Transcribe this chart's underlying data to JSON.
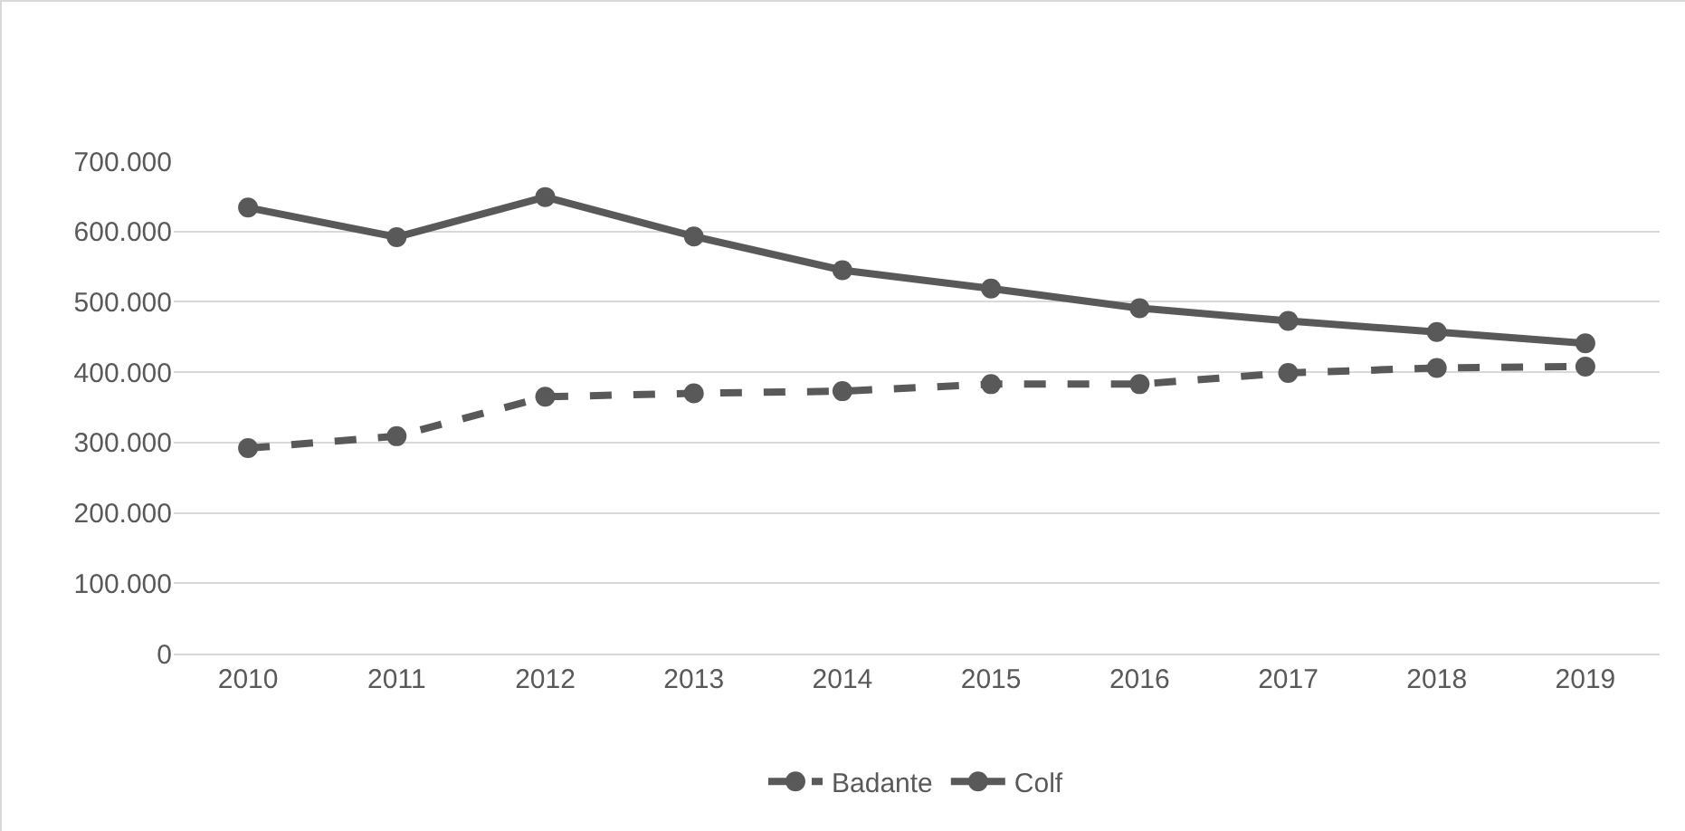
{
  "chart_data": {
    "type": "line",
    "categories": [
      "2010",
      "2011",
      "2012",
      "2013",
      "2014",
      "2015",
      "2016",
      "2017",
      "2018",
      "2019"
    ],
    "series": [
      {
        "name": "Badante",
        "color": "#595959",
        "line_style": "dashed",
        "values": [
          292000,
          309000,
          365000,
          370000,
          373000,
          383000,
          383000,
          399000,
          406000,
          408000
        ]
      },
      {
        "name": "Colf",
        "color": "#595959",
        "line_style": "solid",
        "values": [
          634000,
          592000,
          649000,
          593000,
          545000,
          519000,
          491000,
          473000,
          457000,
          441000
        ]
      }
    ],
    "ylim": [
      0,
      700000
    ],
    "yticks": [
      0,
      {
        "value": 100000,
        "label": "100.000"
      },
      {
        "value": 200000,
        "label": "200.000"
      },
      {
        "value": 300000,
        "label": "300.000"
      },
      {
        "value": 400000,
        "label": "400.000"
      },
      {
        "value": 500000,
        "label": "500.000"
      },
      {
        "value": 600000,
        "label": "600.000"
      },
      {
        "value": 700000,
        "label": "700.000"
      }
    ],
    "grid": "y",
    "legend": "bottom",
    "marker": "circle"
  }
}
